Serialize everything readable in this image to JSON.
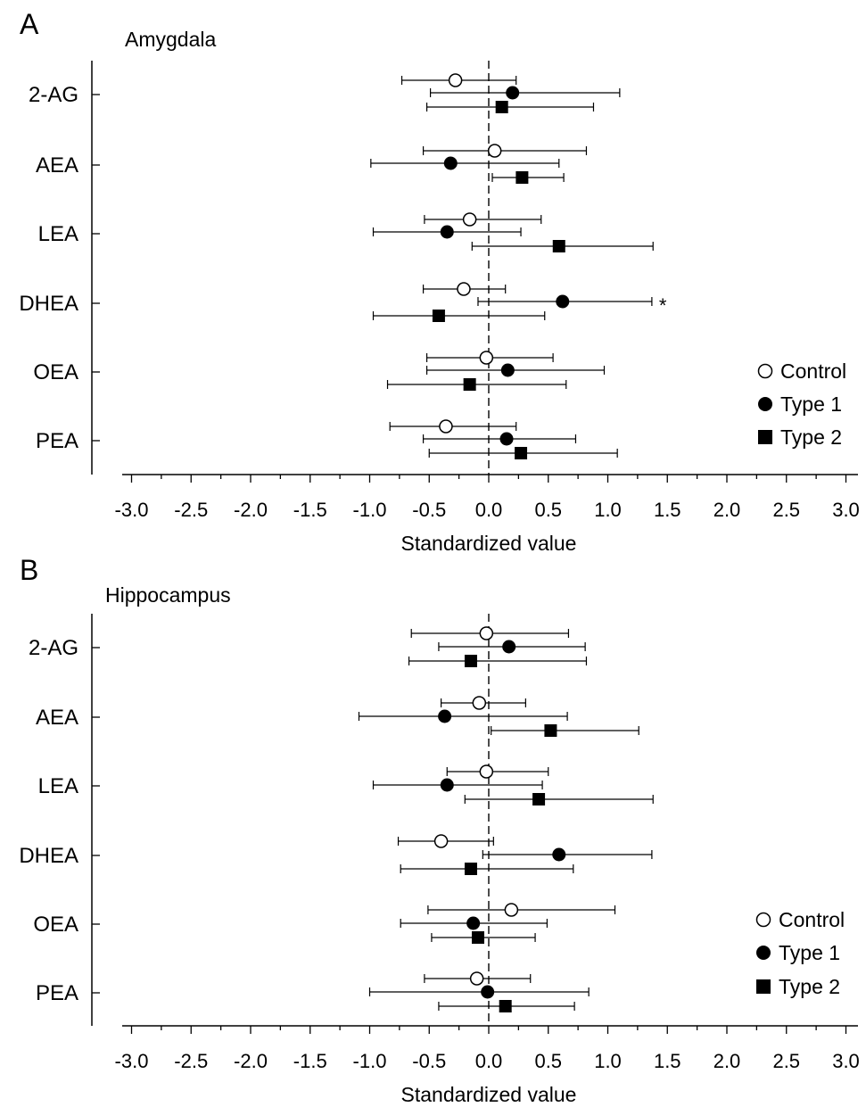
{
  "chart_data": [
    {
      "type": "scatter",
      "panel": "A",
      "title": "Amygdala",
      "xlabel": "Standardized value",
      "xlim": [
        -3.0,
        3.0
      ],
      "xticks": [
        "-3.0",
        "-2.5",
        "-2.0",
        "-1.5",
        "-1.0",
        "-0.5",
        "0.0",
        "0.5",
        "1.0",
        "1.5",
        "2.0",
        "2.5",
        "3.0"
      ],
      "categories": [
        "2-AG",
        "AEA",
        "LEA",
        "DHEA",
        "OEA",
        "PEA"
      ],
      "reference_line": {
        "x": 0,
        "style": "dashed"
      },
      "legend": {
        "position": "right",
        "entries": [
          "Control",
          "Type 1",
          "Type 2"
        ]
      },
      "series": [
        {
          "name": "Control",
          "marker": "open-circle",
          "values": [
            -0.28,
            0.05,
            -0.16,
            -0.21,
            -0.02,
            -0.36
          ],
          "lower": [
            -0.73,
            -0.55,
            -0.54,
            -0.55,
            -0.52,
            -0.83
          ],
          "upper": [
            0.23,
            0.82,
            0.44,
            0.14,
            0.54,
            0.23
          ]
        },
        {
          "name": "Type 1",
          "marker": "filled-circle",
          "values": [
            0.2,
            -0.32,
            -0.35,
            0.62,
            0.16,
            0.15
          ],
          "lower": [
            -0.49,
            -0.99,
            -0.97,
            -0.09,
            -0.52,
            -0.55
          ],
          "upper": [
            1.1,
            0.59,
            0.27,
            1.37,
            0.97,
            0.73
          ]
        },
        {
          "name": "Type 2",
          "marker": "filled-square",
          "values": [
            0.11,
            0.28,
            0.59,
            -0.42,
            -0.16,
            0.27
          ],
          "lower": [
            -0.52,
            0.03,
            -0.14,
            -0.97,
            -0.85,
            -0.5
          ],
          "upper": [
            0.88,
            0.63,
            1.38,
            0.47,
            0.65,
            1.08
          ]
        }
      ],
      "annotations": [
        {
          "text": "*",
          "category": "DHEA",
          "series": "Type 1"
        }
      ]
    },
    {
      "type": "scatter",
      "panel": "B",
      "title": "Hippocampus",
      "xlabel": "Standardized value",
      "xlim": [
        -3.0,
        3.0
      ],
      "xticks": [
        "-3.0",
        "-2.5",
        "-2.0",
        "-1.5",
        "-1.0",
        "-0.5",
        "0.0",
        "0.5",
        "1.0",
        "1.5",
        "2.0",
        "2.5",
        "3.0"
      ],
      "categories": [
        "2-AG",
        "AEA",
        "LEA",
        "DHEA",
        "OEA",
        "PEA"
      ],
      "reference_line": {
        "x": 0,
        "style": "dashed"
      },
      "legend": {
        "position": "right",
        "entries": [
          "Control",
          "Type 1",
          "Type 2"
        ]
      },
      "series": [
        {
          "name": "Control",
          "marker": "open-circle",
          "values": [
            -0.02,
            -0.08,
            -0.02,
            -0.4,
            0.19,
            -0.1
          ],
          "lower": [
            -0.65,
            -0.4,
            -0.35,
            -0.76,
            -0.51,
            -0.54
          ],
          "upper": [
            0.67,
            0.31,
            0.5,
            0.04,
            1.06,
            0.35
          ]
        },
        {
          "name": "Type 1",
          "marker": "filled-circle",
          "values": [
            0.17,
            -0.37,
            -0.35,
            0.59,
            -0.13,
            -0.01
          ],
          "lower": [
            -0.42,
            -1.09,
            -0.97,
            -0.05,
            -0.74,
            -1.0
          ],
          "upper": [
            0.81,
            0.66,
            0.45,
            1.37,
            0.49,
            0.84
          ]
        },
        {
          "name": "Type 2",
          "marker": "filled-square",
          "values": [
            -0.15,
            0.52,
            0.42,
            -0.15,
            -0.09,
            0.14
          ],
          "lower": [
            -0.67,
            0.02,
            -0.2,
            -0.74,
            -0.48,
            -0.42
          ],
          "upper": [
            0.82,
            1.26,
            1.38,
            0.71,
            0.39,
            0.72
          ]
        }
      ]
    }
  ]
}
